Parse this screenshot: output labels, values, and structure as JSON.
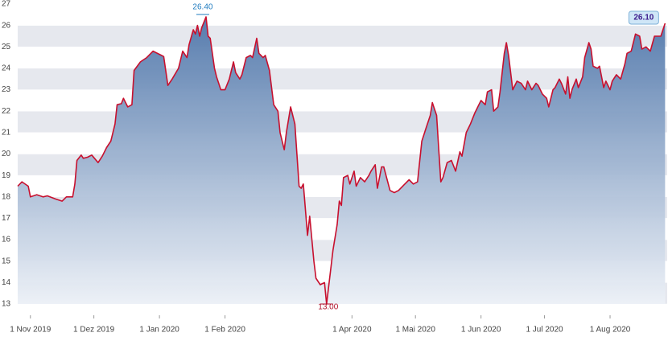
{
  "chart_data": {
    "type": "area",
    "color": "#c8102e",
    "fill_top": "#4f76aa",
    "fill_bottom": "#edf1f7",
    "band_color": "#e6e8ee",
    "x": [
      "2019-10-26",
      "2019-10-28",
      "2019-10-31",
      "2019-11-01",
      "2019-11-04",
      "2019-11-07",
      "2019-11-09",
      "2019-11-13",
      "2019-11-16",
      "2019-11-18",
      "2019-11-21",
      "2019-11-22",
      "2019-11-23",
      "2019-11-25",
      "2019-11-26",
      "2019-11-28",
      "2019-11-30",
      "2019-12-03",
      "2019-12-05",
      "2019-12-07",
      "2019-12-09",
      "2019-12-11",
      "2019-12-12",
      "2019-12-14",
      "2019-12-15",
      "2019-12-17",
      "2019-12-19",
      "2019-12-20",
      "2019-12-23",
      "2019-12-26",
      "2019-12-29",
      "2020-01-02",
      "2020-01-03",
      "2020-01-05",
      "2020-01-07",
      "2020-01-10",
      "2020-01-12",
      "2020-01-14",
      "2020-01-15",
      "2020-01-17",
      "2020-01-18",
      "2020-01-19",
      "2020-01-20",
      "2020-01-21",
      "2020-01-23",
      "2020-01-24",
      "2020-01-25",
      "2020-01-27",
      "2020-01-28",
      "2020-01-30",
      "2020-02-01",
      "2020-02-03",
      "2020-02-05",
      "2020-02-06",
      "2020-02-08",
      "2020-02-09",
      "2020-02-11",
      "2020-02-13",
      "2020-02-14",
      "2020-02-16",
      "2020-02-17",
      "2020-02-19",
      "2020-02-20",
      "2020-02-22",
      "2020-02-24",
      "2020-02-26",
      "2020-02-27",
      "2020-02-29",
      "2020-03-01",
      "2020-03-03",
      "2020-03-05",
      "2020-03-07",
      "2020-03-08",
      "2020-03-09",
      "2020-03-11",
      "2020-03-12",
      "2020-03-14",
      "2020-03-15",
      "2020-03-17",
      "2020-03-19",
      "2020-03-20",
      "2020-03-23",
      "2020-03-25",
      "2020-03-26",
      "2020-03-27",
      "2020-03-28",
      "2020-03-30",
      "2020-03-31",
      "2020-04-02",
      "2020-04-03",
      "2020-04-05",
      "2020-04-07",
      "2020-04-09",
      "2020-04-10",
      "2020-04-12",
      "2020-04-13",
      "2020-04-15",
      "2020-04-16",
      "2020-04-19",
      "2020-04-21",
      "2020-04-23",
      "2020-04-26",
      "2020-04-28",
      "2020-04-30",
      "2020-05-02",
      "2020-05-04",
      "2020-05-06",
      "2020-05-08",
      "2020-05-09",
      "2020-05-11",
      "2020-05-13",
      "2020-05-14",
      "2020-05-16",
      "2020-05-18",
      "2020-05-20",
      "2020-05-22",
      "2020-05-23",
      "2020-05-25",
      "2020-05-27",
      "2020-05-29",
      "2020-05-31",
      "2020-06-01",
      "2020-06-03",
      "2020-06-04",
      "2020-06-06",
      "2020-06-07",
      "2020-06-09",
      "2020-06-10",
      "2020-06-12",
      "2020-06-13",
      "2020-06-14",
      "2020-06-16",
      "2020-06-18",
      "2020-06-20",
      "2020-06-22",
      "2020-06-23",
      "2020-06-25",
      "2020-06-27",
      "2020-06-28",
      "2020-06-30",
      "2020-07-02",
      "2020-07-03",
      "2020-07-05",
      "2020-07-06",
      "2020-07-08",
      "2020-07-09",
      "2020-07-11",
      "2020-07-12",
      "2020-07-13",
      "2020-07-14",
      "2020-07-16",
      "2020-07-17",
      "2020-07-19",
      "2020-07-20",
      "2020-07-22",
      "2020-07-23",
      "2020-07-24",
      "2020-07-26",
      "2020-07-27",
      "2020-07-29",
      "2020-07-30",
      "2020-08-01",
      "2020-08-02",
      "2020-08-04",
      "2020-08-06",
      "2020-08-08",
      "2020-08-09",
      "2020-08-11",
      "2020-08-13",
      "2020-08-15",
      "2020-08-16",
      "2020-08-18",
      "2020-08-20",
      "2020-08-22",
      "2020-08-25",
      "2020-08-27"
    ],
    "values": [
      18.5,
      18.7,
      18.5,
      18.0,
      18.1,
      18.0,
      18.05,
      17.9,
      17.8,
      18.0,
      18.0,
      18.6,
      19.7,
      19.95,
      19.8,
      19.85,
      19.95,
      19.6,
      19.9,
      20.3,
      20.6,
      21.4,
      22.3,
      22.35,
      22.6,
      22.2,
      22.3,
      23.9,
      24.3,
      24.5,
      24.8,
      24.6,
      24.55,
      23.2,
      23.5,
      24.0,
      24.8,
      24.5,
      25.1,
      25.8,
      25.6,
      26.0,
      25.5,
      25.9,
      26.4,
      25.5,
      25.4,
      24.0,
      23.6,
      23.0,
      23.0,
      23.5,
      24.3,
      23.8,
      23.5,
      23.7,
      24.5,
      24.6,
      24.5,
      25.4,
      24.7,
      24.5,
      24.6,
      23.9,
      22.3,
      22.0,
      21.0,
      20.2,
      21.0,
      22.2,
      21.4,
      18.5,
      18.4,
      18.6,
      16.2,
      17.1,
      15.0,
      14.2,
      13.9,
      14.0,
      13.0,
      15.5,
      16.7,
      17.8,
      17.6,
      18.9,
      19.0,
      18.6,
      19.2,
      18.5,
      18.9,
      18.7,
      19.0,
      19.2,
      19.5,
      18.4,
      19.4,
      19.4,
      18.3,
      18.2,
      18.3,
      18.6,
      18.8,
      18.6,
      18.7,
      20.6,
      21.2,
      21.8,
      22.4,
      21.8,
      18.7,
      18.9,
      19.6,
      19.7,
      19.2,
      20.1,
      19.9,
      21.0,
      21.4,
      21.9,
      22.3,
      22.5,
      22.3,
      22.9,
      23.0,
      22.0,
      22.2,
      22.9,
      24.7,
      25.2,
      24.6,
      23.0,
      23.4,
      23.3,
      23.0,
      23.4,
      23.0,
      23.3,
      23.2,
      22.8,
      22.6,
      22.2,
      23.0,
      23.1,
      23.5,
      23.3,
      22.8,
      23.6,
      22.6,
      23.0,
      23.5,
      23.1,
      23.6,
      24.5,
      25.2,
      24.9,
      24.1,
      24.0,
      24.1,
      23.1,
      23.4,
      23.0,
      23.4,
      23.7,
      23.5,
      24.2,
      24.7,
      24.8,
      25.6,
      25.5,
      24.9,
      25.0,
      24.8,
      25.5,
      25.5,
      26.1
    ],
    "xlim": [
      "2019-10-26",
      "2020-08-28"
    ],
    "xticks": [
      {
        "value": "2019-11-01",
        "label": "1 Nov 2019"
      },
      {
        "value": "2019-12-01",
        "label": "1 Dez 2019"
      },
      {
        "value": "2020-01-01",
        "label": "1 Jan 2020"
      },
      {
        "value": "2020-02-01",
        "label": "1 Feb 2020"
      },
      {
        "value": "2020-04-01",
        "label": "1 Apr 2020"
      },
      {
        "value": "2020-05-01",
        "label": "1 Mai 2020"
      },
      {
        "value": "2020-06-01",
        "label": "1 Jun 2020"
      },
      {
        "value": "2020-07-01",
        "label": "1 Jul 2020"
      },
      {
        "value": "2020-08-01",
        "label": "1 Aug 2020"
      }
    ],
    "ylim": [
      13,
      27
    ],
    "yticks": [
      13,
      14,
      15,
      16,
      17,
      18,
      19,
      20,
      21,
      22,
      23,
      24,
      25,
      26,
      27
    ],
    "annotations": [
      {
        "kind": "max",
        "x": "2020-01-23",
        "value": 26.4,
        "label": "26.40",
        "color": "#1f7bbf"
      },
      {
        "kind": "min",
        "x": "2020-03-20",
        "value": 13.0,
        "label": "13.00",
        "color": "#b0102a"
      },
      {
        "kind": "last",
        "x": "2020-08-27",
        "value": 26.1,
        "label": "26.10",
        "color": "#3b1a8c"
      }
    ]
  }
}
